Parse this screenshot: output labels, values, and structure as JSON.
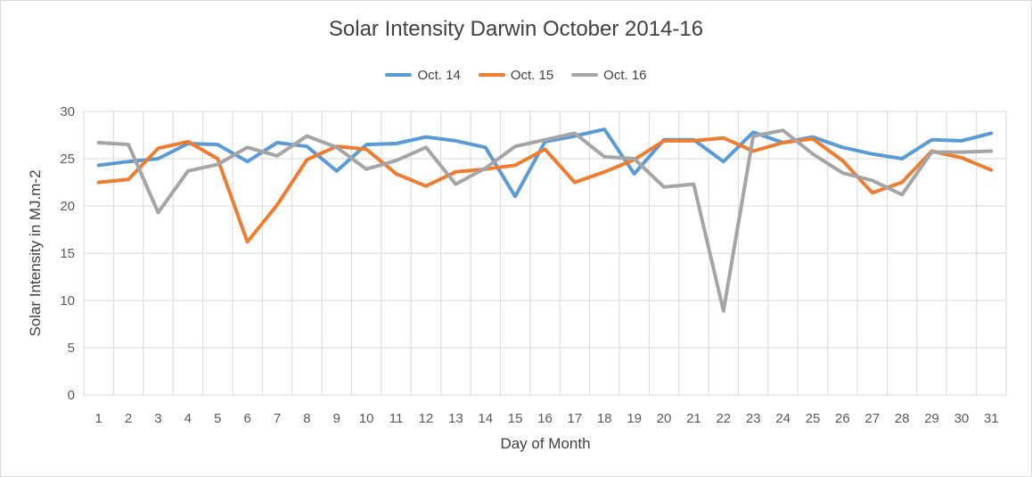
{
  "chart_data": {
    "type": "line",
    "title": "Solar Intensity Darwin October 2014-16",
    "xlabel": "Day of Month",
    "ylabel": "Solar Intensity in MJ.m-2",
    "ylim": [
      0,
      30
    ],
    "yticks": [
      0,
      5,
      10,
      15,
      20,
      25,
      30
    ],
    "grid": true,
    "legend_position": "top",
    "categories": [
      "1",
      "2",
      "3",
      "4",
      "5",
      "6",
      "7",
      "8",
      "9",
      "10",
      "11",
      "12",
      "13",
      "14",
      "15",
      "16",
      "17",
      "18",
      "19",
      "20",
      "21",
      "22",
      "23",
      "24",
      "25",
      "26",
      "27",
      "28",
      "29",
      "30",
      "31"
    ],
    "series": [
      {
        "name": "Oct. 14",
        "color": "#5b9bd5",
        "values": [
          24.3,
          24.7,
          25.0,
          26.6,
          26.5,
          24.7,
          26.7,
          26.3,
          23.7,
          26.5,
          26.6,
          27.3,
          26.9,
          26.2,
          21.0,
          26.8,
          27.4,
          28.1,
          23.4,
          27.0,
          27.0,
          24.7,
          27.8,
          26.7,
          27.3,
          26.2,
          25.5,
          25.0,
          27.0,
          26.9,
          27.7
        ]
      },
      {
        "name": "Oct. 15",
        "color": "#ed7d31",
        "values": [
          22.5,
          22.8,
          26.1,
          26.8,
          25.0,
          16.2,
          20.1,
          24.9,
          26.3,
          26.0,
          23.4,
          22.1,
          23.6,
          23.9,
          24.3,
          26.0,
          22.5,
          23.6,
          24.9,
          26.9,
          26.9,
          27.2,
          25.8,
          26.7,
          27.1,
          24.8,
          21.4,
          22.5,
          25.8,
          25.1,
          23.8
        ]
      },
      {
        "name": "Oct. 16",
        "color": "#a5a5a5",
        "values": [
          26.7,
          26.5,
          19.3,
          23.7,
          24.4,
          26.2,
          25.3,
          27.4,
          26.2,
          23.9,
          24.8,
          26.2,
          22.3,
          24.0,
          26.3,
          27.0,
          27.7,
          25.2,
          25.0,
          22.0,
          22.3,
          8.9,
          27.4,
          28.0,
          25.5,
          23.5,
          22.7,
          21.2,
          25.7,
          25.7,
          25.8
        ]
      }
    ]
  }
}
